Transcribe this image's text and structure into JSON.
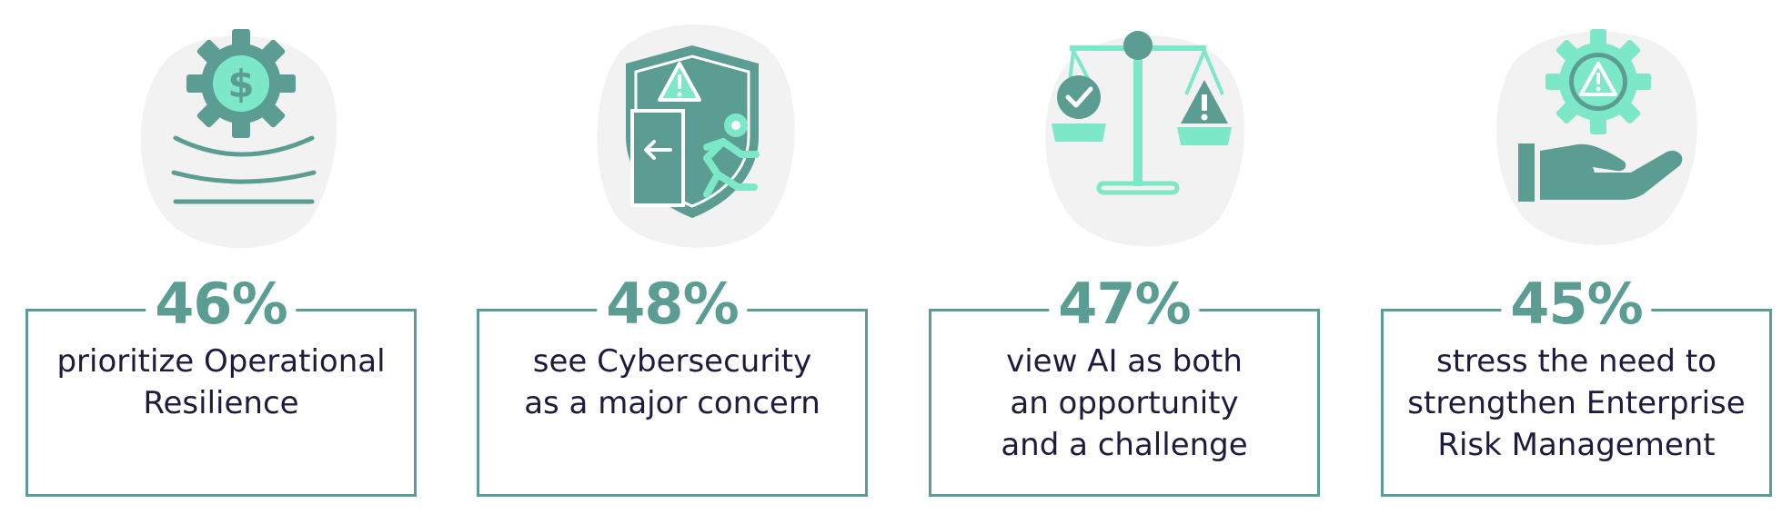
{
  "colors": {
    "primary": "#5b9d92",
    "accent": "#7de8c8",
    "text": "#1f1b3d",
    "blob": "#f2f2f2"
  },
  "stats": [
    {
      "icon": "gear-dollar-icon",
      "percent": "46%",
      "lines": [
        "prioritize Operational",
        "Resilience"
      ]
    },
    {
      "icon": "shield-exit-icon",
      "percent": "48%",
      "lines": [
        "see Cybersecurity",
        "as a major concern"
      ]
    },
    {
      "icon": "balance-scale-icon",
      "percent": "47%",
      "lines": [
        "view AI as both",
        "an opportunity",
        "and a challenge"
      ]
    },
    {
      "icon": "hand-gear-warning-icon",
      "percent": "45%",
      "lines": [
        "stress the need to",
        "strengthen Enterprise",
        "Risk Management"
      ]
    }
  ]
}
